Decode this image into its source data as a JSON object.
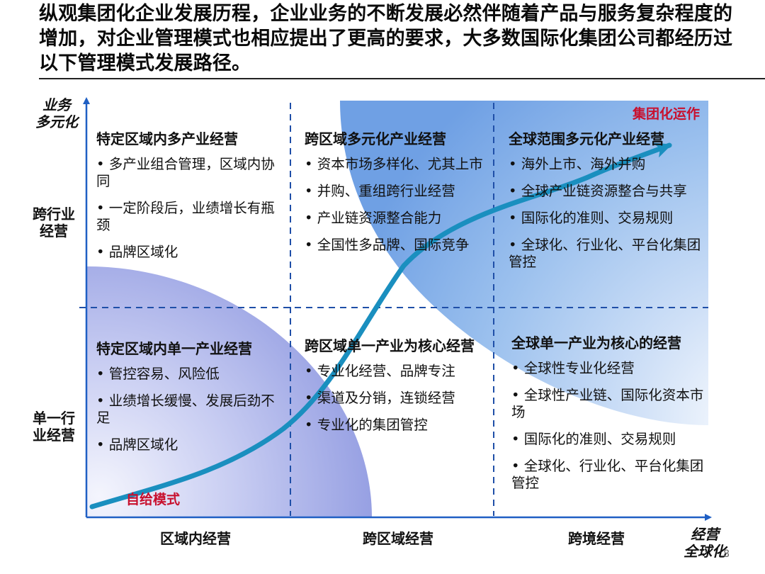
{
  "headline": "纵观集团化企业发展历程，企业业务的不断发展必然伴随着产品与服务复杂程度的增加，对企业管理模式也相应提出了更高的要求，大多数国际化集团公司都经历过以下管理模式发展路径。",
  "y_axis": {
    "title": "业务\n多元化",
    "levels": [
      "跨行业\n经营",
      "单一行\n业经营"
    ]
  },
  "x_axis": {
    "title": "经营\n全球化",
    "levels": [
      "区域内经营",
      "跨区域经营",
      "跨境经营"
    ]
  },
  "cells": {
    "top_left": {
      "title": "特定区域内多产业经营",
      "bullets": [
        "多产业组合管理，区域内协同",
        "一定阶段后，业绩增长有瓶颈",
        "品牌区域化"
      ]
    },
    "top_mid": {
      "title": "跨区域多元化产业经营",
      "bullets": [
        "资本市场多样化、尤其上市",
        "并购、重组跨行业经营",
        "产业链资源整合能力",
        "全国性多品牌、国际竞争"
      ]
    },
    "top_right": {
      "title": "全球范围多元化产业经营",
      "bullets": [
        "海外上市、海外并购",
        "全球产业链资源整合与共享",
        "国际化的准则、交易规则",
        "全球化、行业化、平台化集团管控"
      ]
    },
    "bottom_left": {
      "title": "特定区域内单一产业经营",
      "bullets": [
        "管控容易、风险低",
        "业绩增长缓慢、发展后劲不足",
        "品牌区域化"
      ]
    },
    "bottom_mid": {
      "title": "跨区域单一产业为核心经营",
      "bullets": [
        "专业化经营、品牌专注",
        "渠道及分销，连锁经营",
        "专业化的集团管控"
      ]
    },
    "bottom_right": {
      "title": "全球单一产业为核心的经营",
      "bullets": [
        "全球性专业化经营",
        "全球性产业链、国际化资本市场",
        "国际化的准则、交易规则",
        "全球化、行业化、平台化集团管控"
      ]
    }
  },
  "tags": {
    "start": "自给模式",
    "end": "集团化运作"
  },
  "page_number": "8",
  "colors": {
    "axis": "#1f5fc4",
    "grid": "#1f4fa8",
    "curve": "#1a8fbf",
    "tag": "#c8102e",
    "bubble_blue": "#8fb6ea",
    "bubble_violet": "#8f98e0"
  }
}
